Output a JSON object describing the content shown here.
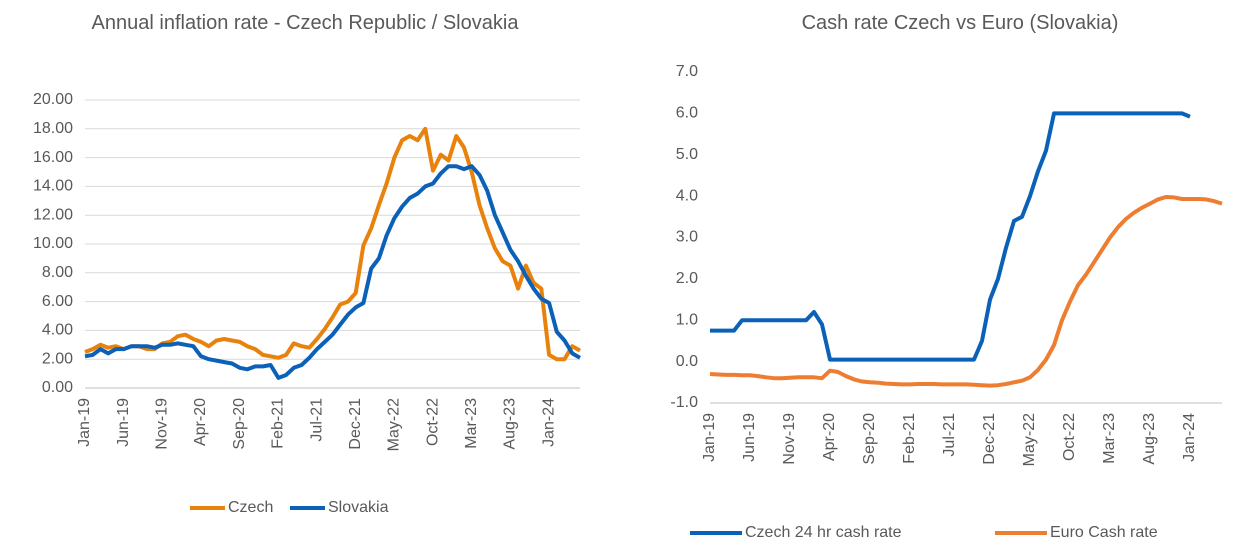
{
  "chart_data": [
    {
      "type": "line",
      "title": "Annual inflation rate - Czech Republic / Slovakia",
      "categories": [
        "Jan-19",
        null,
        null,
        null,
        null,
        "Jun-19",
        null,
        null,
        null,
        null,
        "Nov-19",
        null,
        null,
        null,
        null,
        "Apr-20",
        null,
        null,
        null,
        null,
        "Sep-20",
        null,
        null,
        null,
        null,
        "Feb-21",
        null,
        null,
        null,
        null,
        "Jul-21",
        null,
        null,
        null,
        null,
        "Dec-21",
        null,
        null,
        null,
        null,
        "May-22",
        null,
        null,
        null,
        null,
        "Oct-22",
        null,
        null,
        null,
        null,
        "Mar-23",
        null,
        null,
        null,
        null,
        "Aug-23",
        null,
        null,
        null,
        null,
        "Jan-24",
        null,
        null,
        null,
        null
      ],
      "ylim": [
        0,
        20
      ],
      "yticks": [
        {
          "value": 0,
          "label": "0.00"
        },
        {
          "value": 2,
          "label": "2.00"
        },
        {
          "value": 4,
          "label": "4.00"
        },
        {
          "value": 6,
          "label": "6.00"
        },
        {
          "value": 8,
          "label": "8.00"
        },
        {
          "value": 10,
          "label": "10.00"
        },
        {
          "value": 12,
          "label": "12.00"
        },
        {
          "value": 14,
          "label": "14.00"
        },
        {
          "value": 16,
          "label": "16.00"
        },
        {
          "value": 18,
          "label": "18.00"
        },
        {
          "value": 20,
          "label": "20.00"
        }
      ],
      "grid": true,
      "series": [
        {
          "name": "Czech",
          "color": "#E8820C",
          "values": [
            2.5,
            2.7,
            3.0,
            2.8,
            2.9,
            2.7,
            2.9,
            2.9,
            2.7,
            2.7,
            3.1,
            3.2,
            3.6,
            3.7,
            3.4,
            3.2,
            2.9,
            3.3,
            3.4,
            3.3,
            3.2,
            2.9,
            2.7,
            2.3,
            2.2,
            2.1,
            2.3,
            3.1,
            2.9,
            2.8,
            3.4,
            4.1,
            4.9,
            5.8,
            6.0,
            6.6,
            9.9,
            11.1,
            12.7,
            14.2,
            16.0,
            17.2,
            17.5,
            17.2,
            18.0,
            15.1,
            16.2,
            15.8,
            17.5,
            16.7,
            15.0,
            12.7,
            11.1,
            9.7,
            8.8,
            8.5,
            6.9,
            8.5,
            7.3,
            6.9,
            2.3,
            2.0,
            2.0,
            2.9,
            2.6
          ]
        },
        {
          "name": "Slovakia",
          "color": "#0B61B8",
          "values": [
            2.2,
            2.3,
            2.7,
            2.4,
            2.7,
            2.7,
            2.9,
            2.9,
            2.9,
            2.8,
            3.0,
            3.0,
            3.1,
            3.0,
            2.9,
            2.2,
            2.0,
            1.9,
            1.8,
            1.7,
            1.4,
            1.3,
            1.5,
            1.5,
            1.6,
            0.7,
            0.9,
            1.4,
            1.6,
            2.1,
            2.7,
            3.2,
            3.7,
            4.4,
            5.1,
            5.6,
            5.9,
            8.3,
            9.0,
            10.6,
            11.8,
            12.6,
            13.2,
            13.5,
            14.0,
            14.2,
            14.9,
            15.4,
            15.4,
            15.2,
            15.4,
            14.8,
            13.7,
            12.0,
            10.8,
            9.6,
            8.8,
            7.8,
            6.9,
            6.2,
            5.9,
            3.9,
            3.3,
            2.4,
            2.1
          ]
        }
      ]
    },
    {
      "type": "line",
      "title": "Cash rate Czech vs Euro (Slovakia)",
      "categories": [
        "Jan-19",
        null,
        null,
        null,
        null,
        "Jun-19",
        null,
        null,
        null,
        null,
        "Nov-19",
        null,
        null,
        null,
        null,
        "Apr-20",
        null,
        null,
        null,
        null,
        "Sep-20",
        null,
        null,
        null,
        null,
        "Feb-21",
        null,
        null,
        null,
        null,
        "Jul-21",
        null,
        null,
        null,
        null,
        "Dec-21",
        null,
        null,
        null,
        null,
        "May-22",
        null,
        null,
        null,
        null,
        "Oct-22",
        null,
        null,
        null,
        null,
        "Mar-23",
        null,
        null,
        null,
        null,
        "Aug-23",
        null,
        null,
        null,
        null,
        "Jan-24",
        null,
        null,
        null,
        null
      ],
      "ylim": [
        -1,
        7
      ],
      "yticks": [
        {
          "value": -1,
          "label": "-1.0"
        },
        {
          "value": 0,
          "label": "0.0"
        },
        {
          "value": 1,
          "label": "1.0"
        },
        {
          "value": 2,
          "label": "2.0"
        },
        {
          "value": 3,
          "label": "3.0"
        },
        {
          "value": 4,
          "label": "4.0"
        },
        {
          "value": 5,
          "label": "5.0"
        },
        {
          "value": 6,
          "label": "6.0"
        },
        {
          "value": 7,
          "label": "7.0"
        }
      ],
      "grid": false,
      "series": [
        {
          "name": "Czech 24 hr cash rate",
          "color": "#0B61B8",
          "values": [
            0.75,
            0.75,
            0.75,
            0.75,
            1.0,
            1.0,
            1.0,
            1.0,
            1.0,
            1.0,
            1.0,
            1.0,
            1.0,
            1.2,
            0.9,
            0.05,
            0.05,
            0.05,
            0.05,
            0.05,
            0.05,
            0.05,
            0.05,
            0.05,
            0.05,
            0.05,
            0.05,
            0.05,
            0.05,
            0.05,
            0.05,
            0.05,
            0.05,
            0.05,
            0.5,
            1.5,
            2.0,
            2.75,
            3.4,
            3.5,
            4.0,
            4.6,
            5.1,
            6.0,
            6.0,
            6.0,
            6.0,
            6.0,
            6.0,
            6.0,
            6.0,
            6.0,
            6.0,
            6.0,
            6.0,
            6.0,
            6.0,
            6.0,
            6.0,
            6.0,
            5.92,
            null,
            null,
            null,
            null
          ]
        },
        {
          "name": "Euro Cash rate",
          "color": "#ED7D31",
          "values": [
            -0.3,
            -0.31,
            -0.32,
            -0.32,
            -0.33,
            -0.33,
            -0.35,
            -0.38,
            -0.4,
            -0.4,
            -0.39,
            -0.38,
            -0.38,
            -0.38,
            -0.4,
            -0.22,
            -0.25,
            -0.35,
            -0.43,
            -0.48,
            -0.5,
            -0.51,
            -0.53,
            -0.54,
            -0.55,
            -0.55,
            -0.54,
            -0.54,
            -0.54,
            -0.55,
            -0.55,
            -0.55,
            -0.55,
            -0.56,
            -0.57,
            -0.58,
            -0.57,
            -0.54,
            -0.5,
            -0.46,
            -0.38,
            -0.2,
            0.05,
            0.4,
            1.0,
            1.45,
            1.85,
            2.1,
            2.4,
            2.7,
            3.0,
            3.25,
            3.45,
            3.6,
            3.72,
            3.82,
            3.92,
            3.98,
            3.97,
            3.93,
            3.93,
            3.93,
            3.92,
            3.88,
            3.82
          ]
        }
      ]
    }
  ]
}
